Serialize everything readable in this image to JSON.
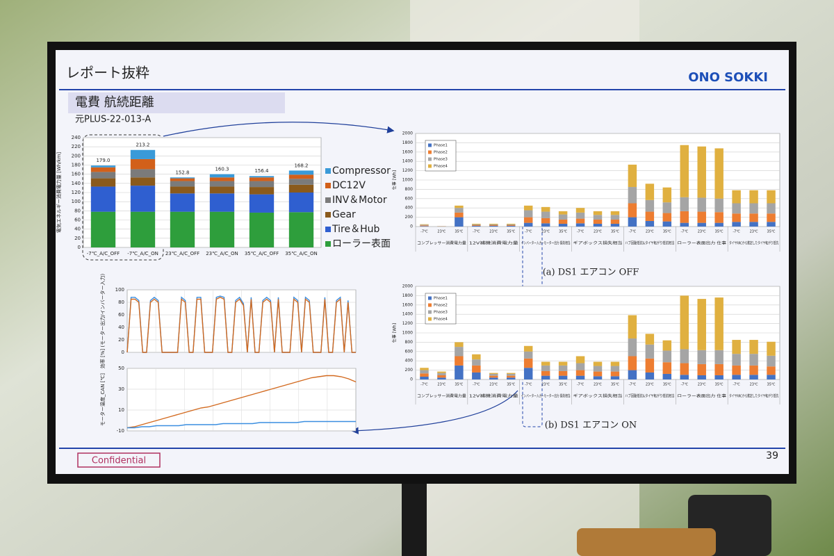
{
  "header": {
    "title": "レポート抜粋",
    "logo": "ONO SOKKI",
    "section": "電費 航続距離",
    "source": "元PLUS-22-013-A"
  },
  "chart_data": [
    {
      "type": "bar",
      "stacked": true,
      "ylabel": "電気エネルギー消費電力量 [Wh/km]",
      "categories": [
        "-7℃_A/C_OFF",
        "-7℃_A/C_ON",
        "23℃_A/C_OFF",
        "23℃_A/C_ON",
        "35℃_A/C_OFF",
        "35℃_A/C_ON"
      ],
      "ylim": [
        0,
        240
      ],
      "yticks": [
        0,
        20,
        40,
        60,
        80,
        100,
        120,
        140,
        160,
        180,
        200,
        220,
        240
      ],
      "grid": true,
      "legend": "right",
      "series": [
        {
          "name": "ローラー表面",
          "color": "#2e9e3c",
          "values": [
            78,
            78,
            78,
            78,
            76,
            77
          ]
        },
        {
          "name": "Tire＆Hub",
          "color": "#2f5fd0",
          "values": [
            55,
            57,
            40,
            40,
            40,
            43
          ]
        },
        {
          "name": "Gear",
          "color": "#8a5a1c",
          "values": [
            18,
            18,
            15,
            15,
            16,
            17
          ]
        },
        {
          "name": "INV＆Motor",
          "color": "#7b7b7b",
          "values": [
            14,
            18,
            12,
            12,
            13,
            13
          ]
        },
        {
          "name": "DC12V",
          "color": "#d2601a",
          "values": [
            10,
            22,
            6,
            8,
            8,
            9
          ]
        },
        {
          "name": "Compressor",
          "color": "#3a9ad8",
          "values": [
            4,
            20,
            2,
            7,
            3,
            9
          ]
        }
      ],
      "totals": [
        179.0,
        213.2,
        152.8,
        160.3,
        156.4,
        168.2
      ],
      "total_labels": [
        "179.0",
        "213.2",
        "152.8",
        "160.3",
        "156.4",
        "168.2"
      ]
    },
    {
      "type": "bar",
      "stacked": true,
      "ylabel": "仕事 [Wh]",
      "caption": "(a) DS1 エアコン OFF",
      "groups": [
        "コンプレッサー消費電力量",
        "12V補機消費電力量",
        "インバーター入力−モーター出力 損失相当",
        "ギアボックス損失相当",
        "ハブ回動抵抗&タイヤ転がり抵抗相当",
        "ローラー表面出力 仕事",
        "タイヤRRCから推定したタイヤ転がり抵抗"
      ],
      "categories": [
        "-7℃",
        "23℃",
        "35℃",
        "-7℃",
        "23℃",
        "35℃",
        "-7℃",
        "23℃",
        "35℃",
        "-7℃",
        "23℃",
        "35℃",
        "-7℃",
        "23℃",
        "35℃",
        "-7℃",
        "23℃",
        "35℃",
        "-7℃",
        "23℃",
        "35℃"
      ],
      "ylim": [
        0,
        2000
      ],
      "yticks": [
        0,
        200,
        400,
        600,
        800,
        1000,
        1200,
        1400,
        1600,
        1800,
        2000
      ],
      "grid": true,
      "legend": "upper left",
      "series": [
        {
          "name": "Phase1",
          "color": "#4472c4",
          "values": [
            10,
            2,
            200,
            15,
            15,
            15,
            80,
            70,
            60,
            70,
            60,
            60,
            200,
            120,
            110,
            80,
            80,
            80,
            100,
            100,
            100
          ]
        },
        {
          "name": "Phase2",
          "color": "#ed7d31",
          "values": [
            15,
            3,
            100,
            15,
            15,
            15,
            120,
            110,
            90,
            100,
            90,
            90,
            300,
            200,
            180,
            250,
            240,
            230,
            180,
            180,
            180
          ]
        },
        {
          "name": "Phase3",
          "color": "#a5a5a5",
          "values": [
            15,
            3,
            100,
            15,
            15,
            15,
            150,
            140,
            110,
            130,
            100,
            100,
            350,
            250,
            230,
            300,
            300,
            290,
            220,
            220,
            220
          ]
        },
        {
          "name": "Phase4",
          "color": "#e0b040",
          "values": [
            10,
            2,
            50,
            15,
            15,
            15,
            100,
            100,
            70,
            100,
            80,
            80,
            480,
            350,
            320,
            1120,
            1100,
            1080,
            280,
            280,
            280
          ]
        }
      ]
    },
    {
      "type": "bar",
      "stacked": true,
      "ylabel": "仕事 [Wh]",
      "caption": "(b) DS1 エアコン ON",
      "groups": [
        "コンプレッサー消費電力量",
        "12V補機消費電力量",
        "インバーター入力−モーター出力 損失相当",
        "ギアボックス損失相当",
        "ハブ回動抵抗&タイヤ転がり抵抗相当",
        "ローラー表面出力 仕事",
        "タイヤRRCから推定したタイヤ転がり抵抗"
      ],
      "categories": [
        "-7℃",
        "23℃",
        "35℃",
        "-7℃",
        "23℃",
        "35℃",
        "-7℃",
        "23℃",
        "35℃",
        "-7℃",
        "23℃",
        "35℃",
        "-7℃",
        "23℃",
        "35℃",
        "-7℃",
        "23℃",
        "35℃",
        "-7℃",
        "23℃",
        "35℃"
      ],
      "ylim": [
        0,
        2000
      ],
      "yticks": [
        0,
        200,
        400,
        600,
        800,
        1000,
        1200,
        1400,
        1600,
        1800,
        2000
      ],
      "grid": true,
      "legend": "upper left",
      "series": [
        {
          "name": "Phase1",
          "color": "#4472c4",
          "values": [
            60,
            40,
            300,
            150,
            40,
            40,
            250,
            80,
            80,
            80,
            70,
            70,
            200,
            150,
            120,
            100,
            90,
            90,
            100,
            100,
            100
          ]
        },
        {
          "name": "Phase2",
          "color": "#ed7d31",
          "values": [
            70,
            50,
            200,
            150,
            40,
            40,
            200,
            100,
            100,
            120,
            100,
            100,
            300,
            300,
            250,
            250,
            240,
            240,
            200,
            200,
            180
          ]
        },
        {
          "name": "Phase3",
          "color": "#a5a5a5",
          "values": [
            70,
            50,
            200,
            130,
            40,
            40,
            150,
            120,
            120,
            150,
            120,
            120,
            380,
            300,
            250,
            300,
            300,
            300,
            250,
            250,
            230
          ]
        },
        {
          "name": "Phase4",
          "color": "#e0b040",
          "values": [
            50,
            30,
            100,
            110,
            20,
            20,
            120,
            80,
            80,
            150,
            90,
            90,
            500,
            230,
            220,
            1150,
            1100,
            1130,
            300,
            300,
            300
          ]
        }
      ]
    },
    {
      "type": "line",
      "ylabel": "効率 [%] (モーター出力/インバーター入力)",
      "ylim": [
        0,
        100
      ],
      "yticks": [
        0,
        20,
        40,
        60,
        80,
        100
      ],
      "grid": true,
      "series": [
        {
          "color": "#3a8ee0",
          "values": [
            0,
            88,
            88,
            83,
            0,
            0,
            83,
            88,
            83,
            0,
            0,
            0,
            0,
            0,
            88,
            83,
            0,
            0,
            88,
            88,
            0,
            0,
            0,
            88,
            90,
            88,
            0,
            0,
            83,
            88,
            78,
            0,
            88,
            0,
            0,
            83,
            88,
            83,
            0,
            88,
            0,
            0,
            0,
            88,
            83,
            0,
            88,
            83,
            0,
            0,
            0,
            88,
            0,
            0,
            83,
            88,
            0,
            83,
            0,
            0
          ]
        },
        {
          "color": "#d2691e",
          "values": [
            0,
            85,
            85,
            80,
            0,
            0,
            80,
            85,
            80,
            0,
            0,
            0,
            0,
            0,
            85,
            80,
            0,
            0,
            85,
            85,
            0,
            0,
            0,
            85,
            88,
            85,
            0,
            0,
            80,
            85,
            75,
            0,
            85,
            0,
            0,
            80,
            85,
            80,
            0,
            85,
            0,
            0,
            0,
            85,
            80,
            0,
            85,
            80,
            0,
            0,
            0,
            85,
            0,
            0,
            80,
            85,
            0,
            80,
            0,
            0
          ]
        }
      ]
    },
    {
      "type": "line",
      "ylabel": "モーター温度_CAN [℃]",
      "ylim": [
        -10,
        50
      ],
      "yticks": [
        -10,
        10,
        30,
        50
      ],
      "grid": true,
      "series": [
        {
          "color": "#d2691e",
          "values": [
            -7,
            -6,
            -4,
            -2,
            0,
            2,
            4,
            6,
            8,
            10,
            12,
            13,
            15,
            17,
            19,
            21,
            23,
            25,
            27,
            29,
            31,
            33,
            35,
            37,
            39,
            41,
            42,
            43,
            43,
            42,
            40,
            37
          ]
        },
        {
          "color": "#3a8ee0",
          "values": [
            -7,
            -7,
            -6,
            -6,
            -5,
            -5,
            -5,
            -5,
            -4,
            -4,
            -4,
            -4,
            -4,
            -3,
            -3,
            -3,
            -3,
            -3,
            -2,
            -2,
            -2,
            -2,
            -2,
            -2,
            -1,
            -1,
            -1,
            -1,
            -1,
            -1,
            -1,
            -1
          ]
        }
      ]
    }
  ],
  "footer": {
    "confidential": "Confidential",
    "page": "39"
  }
}
